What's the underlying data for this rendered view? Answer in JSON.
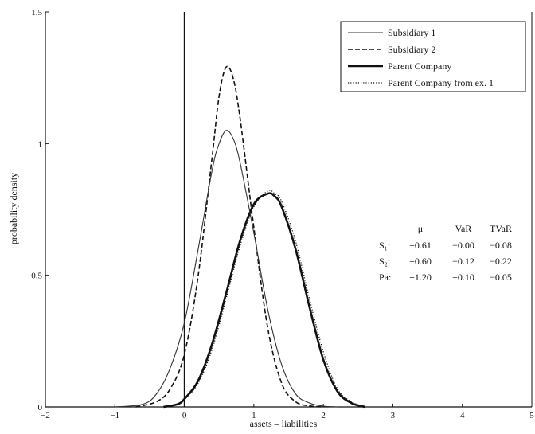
{
  "chart_data": {
    "type": "line",
    "title": "",
    "xlabel": "assets – liabilities",
    "ylabel": "probability density",
    "xlim": [
      -2,
      5
    ],
    "ylim": [
      0,
      1.5
    ],
    "xticks": [
      "−2",
      "−1",
      "0",
      "1",
      "2",
      "3",
      "4",
      "5"
    ],
    "yticks": [
      "0",
      "0.5",
      "1",
      "1.5"
    ],
    "grid": false,
    "vertical_line_at_x": 0,
    "legend_position": "top-right",
    "series": [
      {
        "name": "Subsidiary 1",
        "style": "solid-thin",
        "x": [
          -1.0,
          -0.6,
          -0.4,
          -0.2,
          0.0,
          0.2,
          0.4,
          0.5,
          0.6,
          0.7,
          0.8,
          1.0,
          1.2,
          1.4,
          1.6,
          1.8,
          2.0,
          2.2
        ],
        "y": [
          0.0,
          0.01,
          0.05,
          0.15,
          0.32,
          0.6,
          0.9,
          1.0,
          1.05,
          1.02,
          0.93,
          0.66,
          0.37,
          0.16,
          0.05,
          0.015,
          0.003,
          0.0
        ]
      },
      {
        "name": "Subsidiary 2",
        "style": "dashed",
        "x": [
          -0.7,
          -0.4,
          -0.2,
          0.0,
          0.2,
          0.4,
          0.5,
          0.6,
          0.7,
          0.8,
          1.0,
          1.2,
          1.4,
          1.6,
          1.8,
          2.0
        ],
        "y": [
          0.0,
          0.02,
          0.07,
          0.2,
          0.5,
          0.95,
          1.18,
          1.29,
          1.25,
          1.1,
          0.68,
          0.3,
          0.09,
          0.02,
          0.004,
          0.0
        ]
      },
      {
        "name": "Parent Company",
        "style": "solid-thick",
        "x": [
          -0.3,
          -0.1,
          0.0,
          0.2,
          0.4,
          0.6,
          0.8,
          1.0,
          1.2,
          1.3,
          1.4,
          1.6,
          1.8,
          2.0,
          2.2,
          2.4,
          2.6
        ],
        "y": [
          0.0,
          0.01,
          0.03,
          0.1,
          0.24,
          0.43,
          0.63,
          0.77,
          0.81,
          0.8,
          0.76,
          0.6,
          0.38,
          0.18,
          0.06,
          0.015,
          0.0
        ]
      },
      {
        "name": "Parent Company from ex. 1",
        "style": "dotted",
        "x": [
          -0.3,
          -0.1,
          0.0,
          0.2,
          0.4,
          0.6,
          0.8,
          1.0,
          1.2,
          1.3,
          1.4,
          1.6,
          1.8,
          2.0,
          2.2,
          2.4,
          2.6
        ],
        "y": [
          0.0,
          0.01,
          0.03,
          0.09,
          0.22,
          0.41,
          0.61,
          0.76,
          0.82,
          0.81,
          0.78,
          0.63,
          0.41,
          0.21,
          0.07,
          0.02,
          0.0
        ]
      }
    ],
    "stats_table": {
      "headers": [
        "μ",
        "VaR",
        "TVaR"
      ],
      "rows": [
        {
          "label": "S₁:",
          "values": [
            "+0.61",
            "−0.00",
            "−0.08"
          ]
        },
        {
          "label": "S₂:",
          "values": [
            "+0.60",
            "−0.12",
            "−0.22"
          ]
        },
        {
          "label": "Pa:",
          "values": [
            "+1.20",
            "+0.10",
            "−0.05"
          ]
        }
      ]
    }
  }
}
